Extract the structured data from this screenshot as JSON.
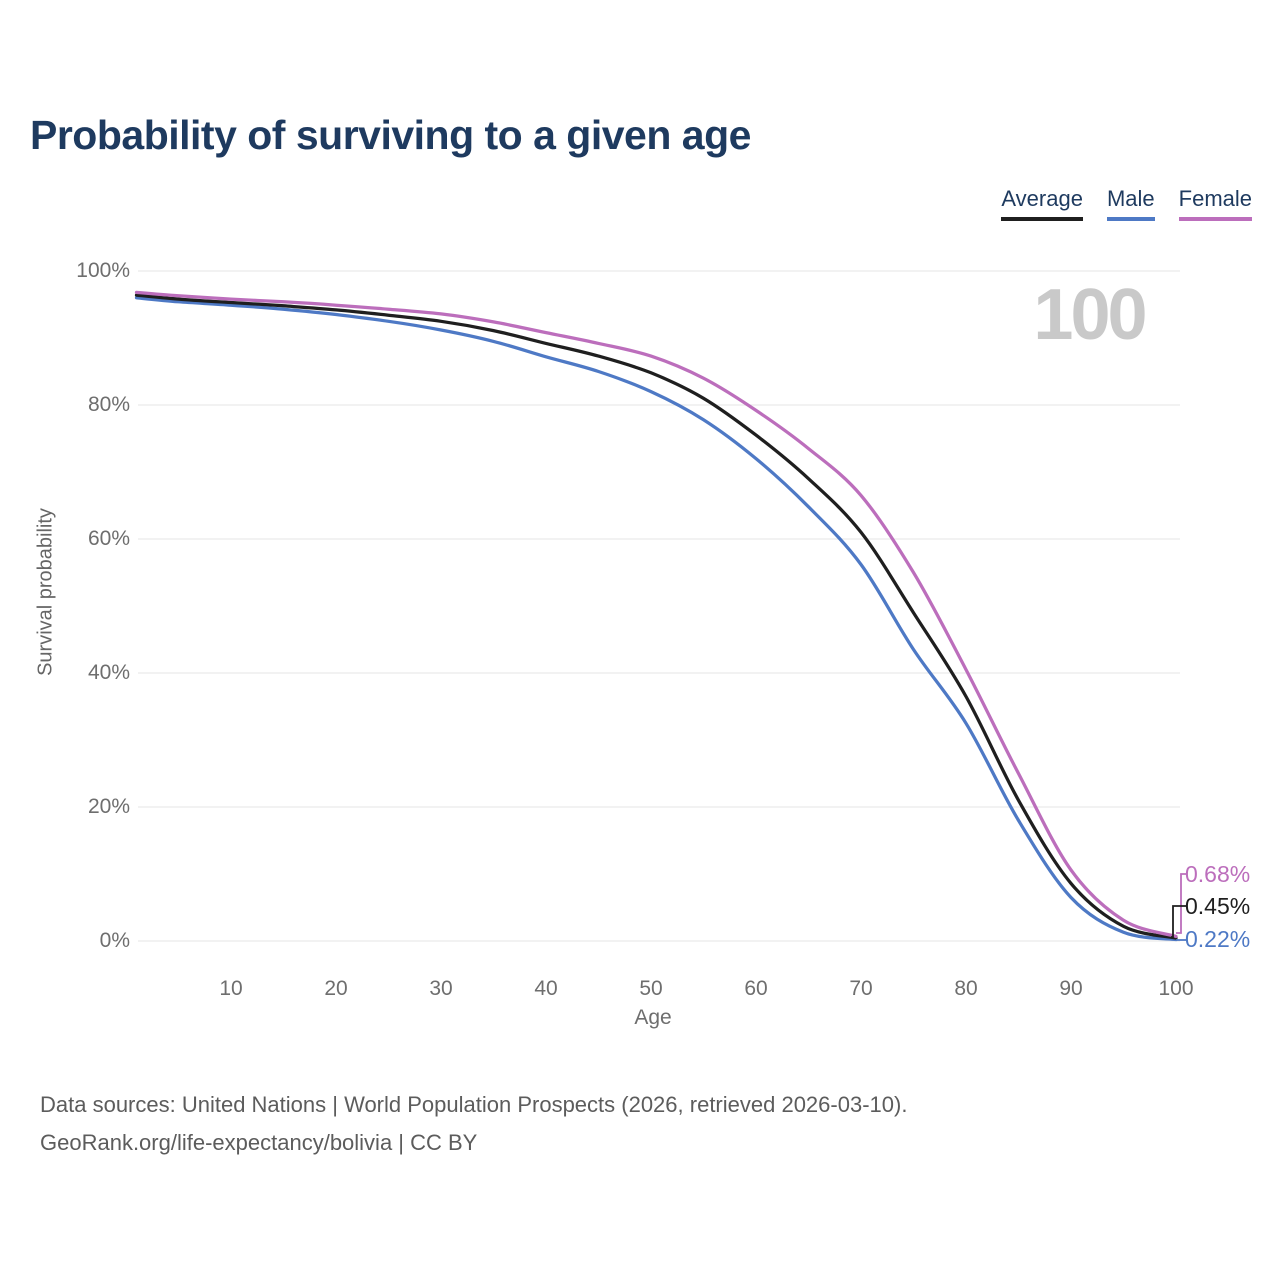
{
  "title": "Probability of surviving to a given age",
  "watermark": "100",
  "legend": {
    "items": [
      {
        "label": "Average",
        "color": "#1f1f1f"
      },
      {
        "label": "Male",
        "color": "#4e79c5"
      },
      {
        "label": "Female",
        "color": "#bc6ebc"
      }
    ]
  },
  "y_axis": {
    "title": "Survival probability",
    "ticks": [
      "100%",
      "80%",
      "60%",
      "40%",
      "20%",
      "0%"
    ]
  },
  "x_axis": {
    "title": "Age",
    "ticks": [
      "10",
      "20",
      "30",
      "40",
      "50",
      "60",
      "70",
      "80",
      "90",
      "100"
    ]
  },
  "end_labels": [
    {
      "series": "Female",
      "label": "0.68%",
      "color": "#bc6ebc"
    },
    {
      "series": "Average",
      "label": "0.45%",
      "color": "#1f1f1f"
    },
    {
      "series": "Male",
      "label": "0.22%",
      "color": "#4e79c5"
    }
  ],
  "footer": {
    "line1": "Data sources: United Nations | World Population Prospects (2026, retrieved 2026-03-10).",
    "line2": "GeoRank.org/life-expectancy/bolivia | CC BY"
  },
  "chart_data": {
    "type": "line",
    "title": "Probability of surviving to a given age",
    "xlabel": "Age",
    "ylabel": "Survival probability",
    "x": [
      1,
      5,
      10,
      15,
      20,
      25,
      30,
      35,
      40,
      45,
      50,
      55,
      60,
      65,
      70,
      75,
      80,
      85,
      90,
      95,
      100
    ],
    "series": [
      {
        "name": "Female",
        "color": "#bc6ebc",
        "end_label": "0.68%",
        "values": [
          96.8,
          96.3,
          95.8,
          95.4,
          94.9,
          94.3,
          93.6,
          92.4,
          90.8,
          89.2,
          87.3,
          84.0,
          79.2,
          73.5,
          66.5,
          55.0,
          40.5,
          25.0,
          10.6,
          3.1,
          0.68
        ]
      },
      {
        "name": "Average",
        "color": "#1f1f1f",
        "end_label": "0.45%",
        "values": [
          96.4,
          95.8,
          95.3,
          94.8,
          94.2,
          93.4,
          92.5,
          91.1,
          89.2,
          87.3,
          84.8,
          81.0,
          75.5,
          69.0,
          61.0,
          49.0,
          36.5,
          21.0,
          8.6,
          2.2,
          0.45
        ]
      },
      {
        "name": "Male",
        "color": "#4e79c5",
        "end_label": "0.22%",
        "values": [
          96.0,
          95.4,
          94.9,
          94.3,
          93.5,
          92.5,
          91.2,
          89.5,
          87.2,
          85.0,
          82.0,
          77.8,
          72.0,
          64.8,
          56.2,
          43.5,
          32.5,
          18.0,
          6.5,
          1.3,
          0.22
        ]
      }
    ],
    "xlim": [
      1,
      100
    ],
    "ylim": [
      0,
      100
    ],
    "grid": "horizontal",
    "legend_position": "top-right"
  }
}
